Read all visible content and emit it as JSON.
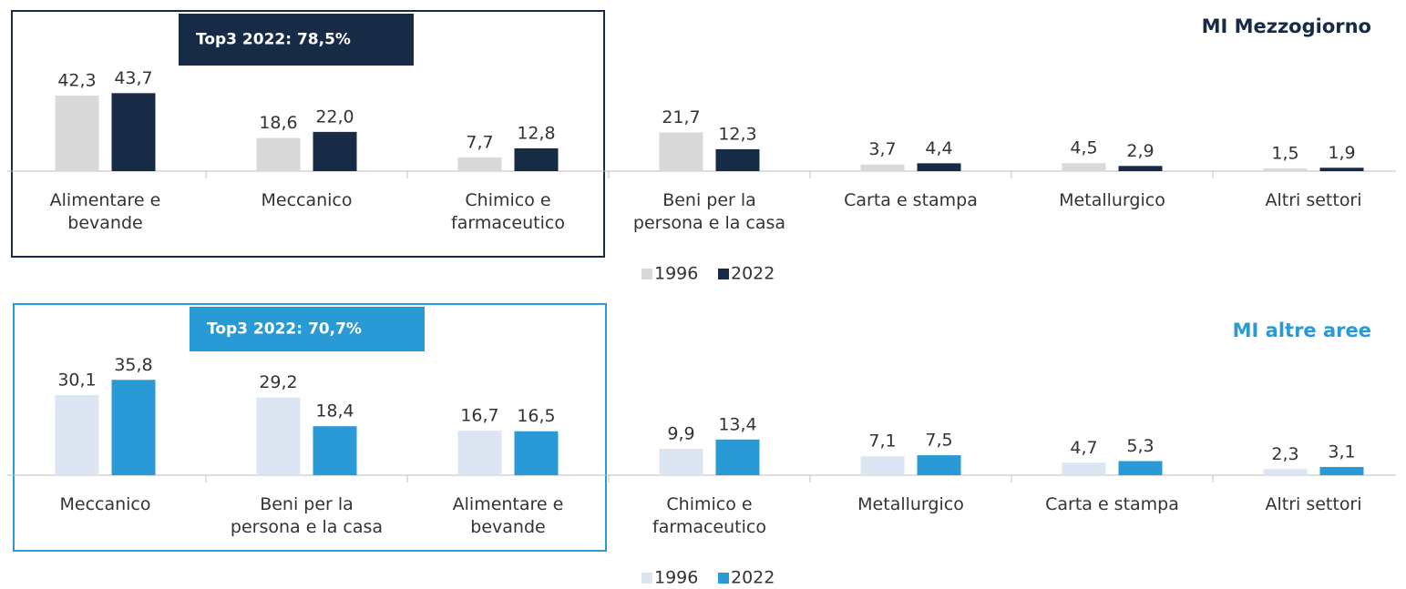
{
  "chart_data": [
    {
      "type": "bar",
      "title": "MI Mezzogiorno",
      "annotation": "Top3 2022: 78,5%",
      "categories": [
        "Alimentare e bevande",
        "Meccanico",
        "Chimico e farmaceutico",
        "Beni per la persona e la casa",
        "Carta e stampa",
        "Metallurgico",
        "Altri settori"
      ],
      "series": [
        {
          "name": "1996",
          "color": "#d9d9d9",
          "values": [
            42.3,
            18.6,
            7.7,
            21.7,
            3.7,
            4.5,
            1.5
          ],
          "value_labels": [
            "42,3",
            "18,6",
            "7,7",
            "21,7",
            "3,7",
            "4,5",
            "1,5"
          ]
        },
        {
          "name": "2022",
          "color": "#172a46",
          "values": [
            43.7,
            22.0,
            12.8,
            12.3,
            4.4,
            2.9,
            1.9
          ],
          "value_labels": [
            "43,7",
            "22,0",
            "12,8",
            "12,3",
            "4,4",
            "2,9",
            "1,9"
          ]
        }
      ],
      "ylim": [
        0,
        50
      ],
      "legend": "bottom",
      "accent": "#172a46"
    },
    {
      "type": "bar",
      "title": "MI altre aree",
      "annotation": "Top3 2022: 70,7%",
      "categories": [
        "Meccanico",
        "Beni per la persona e la casa",
        "Alimentare e bevande",
        "Chimico e farmaceutico",
        "Metallurgico",
        "Carta e stampa",
        "Altri settori"
      ],
      "series": [
        {
          "name": "1996",
          "color": "#dce6f2",
          "values": [
            30.1,
            29.2,
            16.7,
            9.9,
            7.1,
            4.7,
            2.3
          ],
          "value_labels": [
            "30,1",
            "29,2",
            "16,7",
            "9,9",
            "7,1",
            "4,7",
            "2,3"
          ]
        },
        {
          "name": "2022",
          "color": "#2a9ad6",
          "values": [
            35.8,
            18.4,
            16.5,
            13.4,
            7.5,
            5.3,
            3.1
          ],
          "value_labels": [
            "35,8",
            "18,4",
            "16,5",
            "13,4",
            "7,5",
            "5,3",
            "3,1"
          ]
        }
      ],
      "ylim": [
        0,
        40
      ],
      "legend": "bottom",
      "accent": "#2a9ad6"
    }
  ]
}
